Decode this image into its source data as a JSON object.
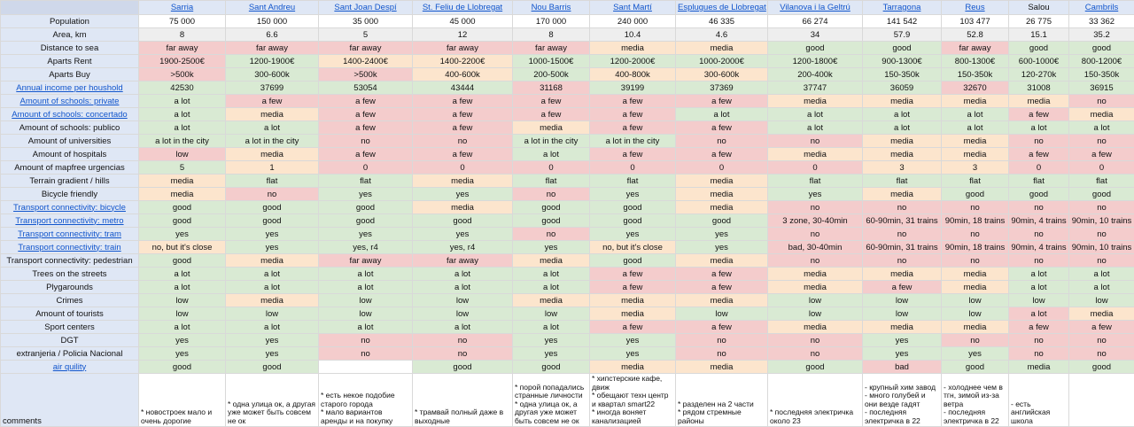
{
  "cities": [
    "Sarria",
    "Sant Andreu",
    "Sant Joan Despí",
    "St. Feliu de Llobregat",
    "Nou Barris",
    "Sant Martí",
    "Esplugues de Llobregat",
    "Vilanova i la Geltrú",
    "Tarragona",
    "Reus",
    "Salou",
    "Cambrils"
  ],
  "rows": [
    {
      "label": "Population",
      "link": false,
      "values": [
        "75 000",
        "150 000",
        "35 000",
        "45 000",
        "170 000",
        "240 000",
        "46 335",
        "66 274",
        "141 542",
        "103 477",
        "26 775",
        "33 362"
      ],
      "colors": [
        "w",
        "w",
        "w",
        "w",
        "w",
        "w",
        "w",
        "w",
        "w",
        "w",
        "w",
        "w"
      ]
    },
    {
      "label": "Area, km",
      "link": false,
      "values": [
        "8",
        "6.6",
        "5",
        "12",
        "8",
        "10.4",
        "4.6",
        "34",
        "57.9",
        "52.8",
        "15.1",
        "35.2"
      ],
      "colors": [
        "s",
        "s",
        "s",
        "s",
        "s",
        "s",
        "s",
        "s",
        "s",
        "s",
        "s",
        "s"
      ]
    },
    {
      "label": "Distance to sea",
      "link": false,
      "values": [
        "far away",
        "far away",
        "far away",
        "far away",
        "far away",
        "media",
        "media",
        "good",
        "good",
        "far away",
        "good",
        "good"
      ],
      "colors": [
        "r",
        "r",
        "r",
        "r",
        "r",
        "y",
        "y",
        "g",
        "g",
        "r",
        "g",
        "g"
      ]
    },
    {
      "label": "Aparts Rent",
      "link": false,
      "values": [
        "1900-2500€",
        "1200-1900€",
        "1400-2400€",
        "1400-2200€",
        "1000-1500€",
        "1200-2000€",
        "1000-2000€",
        "1200-1800€",
        "900-1300€",
        "800-1300€",
        "600-1000€",
        "800-1200€"
      ],
      "colors": [
        "r",
        "g",
        "y",
        "y",
        "g",
        "g",
        "g",
        "g",
        "g",
        "g",
        "g",
        "g"
      ]
    },
    {
      "label": "Aparts Buy",
      "link": false,
      "values": [
        ">500k",
        "300-600k",
        ">500k",
        "400-600k",
        "200-500k",
        "400-800k",
        "300-600k",
        "200-400k",
        "150-350k",
        "150-350k",
        "120-270k",
        "150-350k"
      ],
      "colors": [
        "r",
        "g",
        "r",
        "y",
        "g",
        "y",
        "y",
        "g",
        "g",
        "g",
        "g",
        "g"
      ]
    },
    {
      "label": "Annual income per houshold",
      "link": true,
      "values": [
        "42530",
        "37699",
        "53054",
        "43444",
        "31168",
        "39199",
        "37369",
        "37747",
        "36059",
        "32670",
        "31008",
        "36915"
      ],
      "colors": [
        "g",
        "g",
        "g",
        "g",
        "r",
        "g",
        "g",
        "g",
        "g",
        "r",
        "g",
        "g"
      ]
    },
    {
      "label": "Amount of schools: private",
      "link": true,
      "values": [
        "a lot",
        "a few",
        "a few",
        "a few",
        "a few",
        "a few",
        "a few",
        "media",
        "media",
        "media",
        "media",
        "no"
      ],
      "colors": [
        "g",
        "r",
        "r",
        "r",
        "r",
        "r",
        "r",
        "y",
        "y",
        "y",
        "y",
        "r"
      ]
    },
    {
      "label": "Amount of schools: concertado",
      "link": true,
      "values": [
        "a lot",
        "media",
        "a few",
        "a few",
        "a few",
        "a few",
        "a lot",
        "a lot",
        "a lot",
        "a lot",
        "a few",
        "media"
      ],
      "colors": [
        "g",
        "y",
        "r",
        "r",
        "r",
        "r",
        "g",
        "g",
        "g",
        "g",
        "r",
        "y"
      ]
    },
    {
      "label": "Amount of schools: publico",
      "link": false,
      "values": [
        "a lot",
        "a lot",
        "a few",
        "a few",
        "media",
        "a few",
        "a few",
        "a lot",
        "a lot",
        "a lot",
        "a lot",
        "a lot"
      ],
      "colors": [
        "g",
        "g",
        "r",
        "r",
        "y",
        "r",
        "r",
        "g",
        "g",
        "g",
        "g",
        "g"
      ]
    },
    {
      "label": "Amount of universities",
      "link": false,
      "values": [
        "a lot in the city",
        "a lot in the city",
        "no",
        "no",
        "a lot in the city",
        "a lot in the city",
        "no",
        "no",
        "media",
        "media",
        "no",
        "no"
      ],
      "colors": [
        "g",
        "g",
        "r",
        "r",
        "g",
        "g",
        "r",
        "r",
        "y",
        "y",
        "r",
        "r"
      ]
    },
    {
      "label": "Amount of hospitals",
      "link": false,
      "values": [
        "low",
        "media",
        "a few",
        "a few",
        "a lot",
        "a few",
        "a few",
        "media",
        "media",
        "media",
        "a few",
        "a few"
      ],
      "colors": [
        "r",
        "y",
        "r",
        "r",
        "g",
        "r",
        "r",
        "y",
        "y",
        "y",
        "r",
        "r"
      ]
    },
    {
      "label": "Amount of mapfree urgencias",
      "link": false,
      "values": [
        "5",
        "1",
        "0",
        "0",
        "0",
        "0",
        "0",
        "0",
        "3",
        "3",
        "0",
        "0"
      ],
      "colors": [
        "g",
        "y",
        "r",
        "r",
        "r",
        "r",
        "r",
        "r",
        "y",
        "y",
        "r",
        "r"
      ]
    },
    {
      "label": "Terrain gradient / hills",
      "link": false,
      "values": [
        "media",
        "flat",
        "flat",
        "media",
        "flat",
        "flat",
        "media",
        "flat",
        "flat",
        "flat",
        "flat",
        "flat"
      ],
      "colors": [
        "y",
        "g",
        "g",
        "y",
        "g",
        "g",
        "y",
        "g",
        "g",
        "g",
        "g",
        "g"
      ]
    },
    {
      "label": "Bicycle friendly",
      "link": false,
      "values": [
        "media",
        "no",
        "yes",
        "yes",
        "no",
        "yes",
        "media",
        "yes",
        "media",
        "good",
        "good",
        "good"
      ],
      "colors": [
        "y",
        "r",
        "g",
        "g",
        "r",
        "g",
        "y",
        "g",
        "y",
        "g",
        "g",
        "g"
      ]
    },
    {
      "label": "Transport connectivity: bicycle",
      "link": true,
      "values": [
        "good",
        "good",
        "good",
        "media",
        "good",
        "good",
        "media",
        "no",
        "no",
        "no",
        "no",
        "no"
      ],
      "colors": [
        "g",
        "g",
        "g",
        "y",
        "g",
        "g",
        "y",
        "r",
        "r",
        "r",
        "r",
        "r"
      ]
    },
    {
      "label": "Transport connectivity: metro",
      "link": true,
      "values": [
        "good",
        "good",
        "good",
        "good",
        "good",
        "good",
        "good",
        "3 zone, 30-40min",
        "60-90min, 31 trains",
        "90min, 18 trains",
        "90min, 4 trains",
        "90min, 10 trains"
      ],
      "colors": [
        "g",
        "g",
        "g",
        "g",
        "g",
        "g",
        "g",
        "r",
        "r",
        "r",
        "r",
        "r"
      ]
    },
    {
      "label": "Transport connectivity: tram",
      "link": true,
      "values": [
        "yes",
        "yes",
        "yes",
        "yes",
        "no",
        "yes",
        "yes",
        "no",
        "no",
        "no",
        "no",
        "no"
      ],
      "colors": [
        "g",
        "g",
        "g",
        "g",
        "r",
        "g",
        "g",
        "r",
        "r",
        "r",
        "r",
        "r"
      ]
    },
    {
      "label": "Transport connectivity: train",
      "link": true,
      "values": [
        "no, but it's close",
        "yes",
        "yes, r4",
        "yes, r4",
        "yes",
        "no, but it's close",
        "yes",
        "bad, 30-40min",
        "60-90min, 31 trains",
        "90min, 18 trains",
        "90min, 4 trains",
        "90min, 10 trains"
      ],
      "colors": [
        "y",
        "g",
        "g",
        "g",
        "g",
        "y",
        "g",
        "r",
        "r",
        "r",
        "r",
        "r"
      ]
    },
    {
      "label": "Transport connectivity: pedestrian",
      "link": false,
      "values": [
        "good",
        "media",
        "far away",
        "far away",
        "media",
        "good",
        "media",
        "no",
        "no",
        "no",
        "no",
        "no"
      ],
      "colors": [
        "g",
        "y",
        "r",
        "r",
        "y",
        "g",
        "y",
        "r",
        "r",
        "r",
        "r",
        "r"
      ]
    },
    {
      "label": "Trees on the streets",
      "link": false,
      "values": [
        "a lot",
        "a lot",
        "a lot",
        "a lot",
        "a lot",
        "a few",
        "a few",
        "media",
        "media",
        "media",
        "a lot",
        "a lot"
      ],
      "colors": [
        "g",
        "g",
        "g",
        "g",
        "g",
        "r",
        "r",
        "y",
        "y",
        "y",
        "g",
        "g"
      ]
    },
    {
      "label": "Plygarounds",
      "link": false,
      "values": [
        "a lot",
        "a lot",
        "a lot",
        "a lot",
        "a lot",
        "a few",
        "a few",
        "media",
        "a few",
        "media",
        "a lot",
        "a lot"
      ],
      "colors": [
        "g",
        "g",
        "g",
        "g",
        "g",
        "r",
        "r",
        "y",
        "r",
        "y",
        "g",
        "g"
      ]
    },
    {
      "label": "Crimes",
      "link": false,
      "values": [
        "low",
        "media",
        "low",
        "low",
        "media",
        "media",
        "media",
        "low",
        "low",
        "low",
        "low",
        "low"
      ],
      "colors": [
        "g",
        "y",
        "g",
        "g",
        "y",
        "y",
        "y",
        "g",
        "g",
        "g",
        "g",
        "g"
      ]
    },
    {
      "label": "Amount of tourists",
      "link": false,
      "values": [
        "low",
        "low",
        "low",
        "low",
        "low",
        "media",
        "low",
        "low",
        "low",
        "low",
        "a lot",
        "media"
      ],
      "colors": [
        "g",
        "g",
        "g",
        "g",
        "g",
        "y",
        "g",
        "g",
        "g",
        "g",
        "r",
        "y"
      ]
    },
    {
      "label": "Sport centers",
      "link": false,
      "values": [
        "a lot",
        "a lot",
        "a lot",
        "a lot",
        "a lot",
        "a few",
        "a few",
        "media",
        "media",
        "media",
        "a few",
        "a few"
      ],
      "colors": [
        "g",
        "g",
        "g",
        "g",
        "g",
        "r",
        "r",
        "y",
        "y",
        "y",
        "r",
        "r"
      ]
    },
    {
      "label": "DGT",
      "link": false,
      "values": [
        "yes",
        "yes",
        "no",
        "no",
        "yes",
        "yes",
        "no",
        "no",
        "yes",
        "no",
        "no",
        "no"
      ],
      "colors": [
        "g",
        "g",
        "r",
        "r",
        "g",
        "g",
        "r",
        "r",
        "g",
        "r",
        "r",
        "r"
      ]
    },
    {
      "label": "extranjeria / Policia Nacional",
      "link": false,
      "values": [
        "yes",
        "yes",
        "no",
        "no",
        "yes",
        "yes",
        "no",
        "no",
        "yes",
        "yes",
        "no",
        "no"
      ],
      "colors": [
        "g",
        "g",
        "r",
        "r",
        "g",
        "g",
        "r",
        "r",
        "g",
        "g",
        "r",
        "r"
      ]
    },
    {
      "label": "air quility",
      "link": true,
      "values": [
        "good",
        "good",
        "",
        "good",
        "good",
        "media",
        "media",
        "good",
        "bad",
        "good",
        "media",
        "good"
      ],
      "colors": [
        "g",
        "g",
        "w",
        "g",
        "g",
        "y",
        "y",
        "g",
        "r",
        "g",
        "g",
        "g"
      ]
    }
  ],
  "comments": {
    "label": "comments",
    "values": [
      "* новостроек мало и очень дорогие",
      "* одна улица ок, а другая уже может быть совсем не ок",
      "* есть некое подобие старого города\n* мало вариантов аренды и на покупку",
      "* трамвай полный даже в выходные",
      "* порой попадались странные личности\n* одна улица ок, а другая уже может быть совсем не ок",
      "* хипстерские кафе, движ\n* обещают техн центр и квартал smart22\n* иногда воняет канализацией",
      "* разделен на 2 части\n* рядом стремные районы",
      "* последняя электричка около 23",
      "- крупный хим завод\n- много голубей и они везде гадят\n- последняя электричка в 22",
      "- холоднее чем в тгн, зимой из-за ветра\n- последняя электричка в 22",
      "- есть английская школа",
      ""
    ]
  }
}
